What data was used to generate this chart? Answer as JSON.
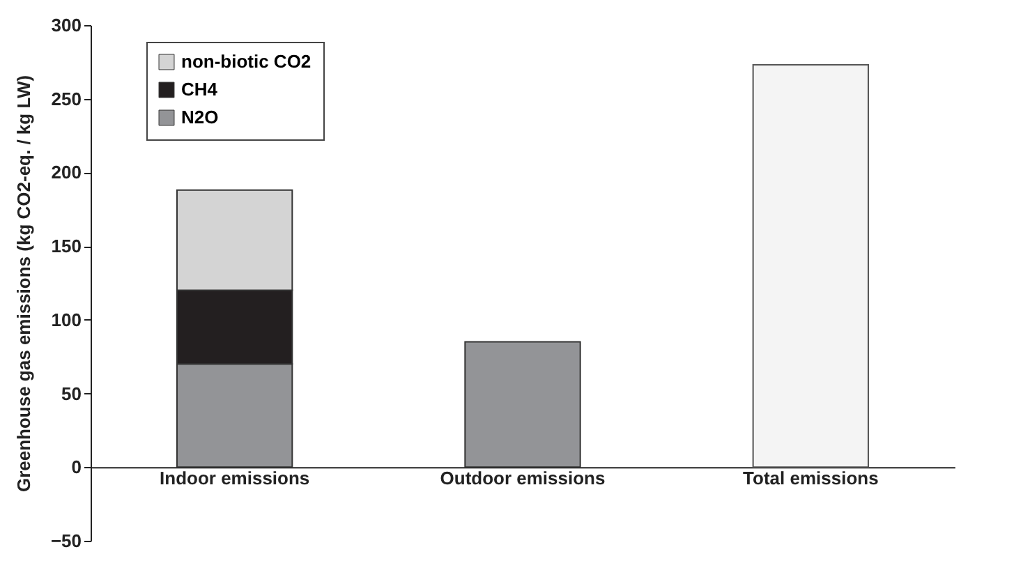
{
  "chart_data": {
    "type": "bar",
    "stacked": true,
    "ylabel": "Greenhouse gas emissions (kg CO2-eq. / kg LW)",
    "categories": [
      "Indoor emissions",
      "Outdoor emissions",
      "Total emissions"
    ],
    "series": [
      {
        "name": "N2O",
        "color": "#939497",
        "values": [
          70,
          85,
          null
        ]
      },
      {
        "name": "CH4",
        "color": "#231f20",
        "values": [
          50,
          null,
          null
        ]
      },
      {
        "name": "non-biotic CO2",
        "color": "#d4d4d4",
        "values": [
          68,
          null,
          null
        ]
      },
      {
        "color": "#f4f4f4",
        "values": [
          null,
          null,
          273
        ]
      }
    ],
    "ylim": [
      -50,
      300
    ],
    "yticks": [
      -50,
      0,
      50,
      100,
      150,
      200,
      250,
      300
    ],
    "grid": false,
    "legend": "top left"
  }
}
